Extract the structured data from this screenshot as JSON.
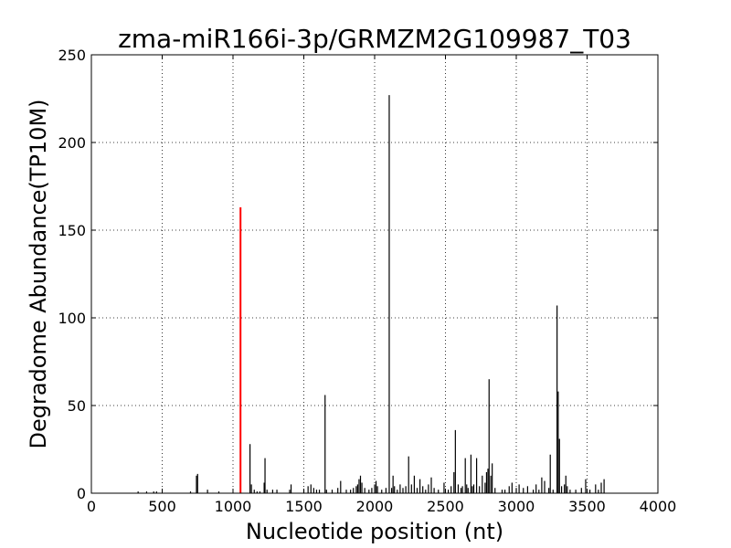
{
  "chart_data": {
    "type": "bar",
    "title": "zma-miR166i-3p/GRMZM2G109987_T03",
    "xlabel": "Nucleotide position (nt)",
    "ylabel": "Degradome Abundance(TP10M)",
    "xlim": [
      0,
      4000
    ],
    "ylim": [
      0,
      250
    ],
    "xticks": [
      "0",
      "500",
      "1000",
      "1500",
      "2000",
      "2500",
      "3000",
      "3500",
      "4000"
    ],
    "yticks": [
      "0",
      "50",
      "100",
      "150",
      "200",
      "250"
    ],
    "grid": true,
    "colors": {
      "target": "#ff0000",
      "background": "#000000"
    },
    "highlight": {
      "x": 1053,
      "y": 163
    },
    "points": [
      [
        330,
        1
      ],
      [
        390,
        1
      ],
      [
        440,
        1
      ],
      [
        460,
        1
      ],
      [
        700,
        1
      ],
      [
        742,
        10
      ],
      [
        750,
        11
      ],
      [
        820,
        2
      ],
      [
        900,
        1
      ],
      [
        1120,
        28
      ],
      [
        1130,
        5
      ],
      [
        1150,
        2
      ],
      [
        1170,
        1
      ],
      [
        1190,
        1
      ],
      [
        1220,
        6
      ],
      [
        1226,
        20
      ],
      [
        1240,
        2
      ],
      [
        1280,
        2
      ],
      [
        1310,
        2
      ],
      [
        1400,
        2
      ],
      [
        1410,
        5
      ],
      [
        1500,
        2
      ],
      [
        1530,
        4
      ],
      [
        1550,
        5
      ],
      [
        1570,
        3
      ],
      [
        1590,
        2
      ],
      [
        1610,
        2
      ],
      [
        1650,
        56
      ],
      [
        1660,
        2
      ],
      [
        1700,
        2
      ],
      [
        1740,
        3
      ],
      [
        1760,
        7
      ],
      [
        1800,
        2
      ],
      [
        1830,
        2
      ],
      [
        1850,
        3
      ],
      [
        1870,
        4
      ],
      [
        1880,
        5
      ],
      [
        1890,
        8
      ],
      [
        1900,
        10
      ],
      [
        1910,
        6
      ],
      [
        1930,
        3
      ],
      [
        1960,
        2
      ],
      [
        1980,
        3
      ],
      [
        2000,
        5
      ],
      [
        2010,
        7
      ],
      [
        2020,
        4
      ],
      [
        2050,
        2
      ],
      [
        2080,
        3
      ],
      [
        2103,
        227
      ],
      [
        2120,
        3
      ],
      [
        2130,
        10
      ],
      [
        2140,
        4
      ],
      [
        2160,
        2
      ],
      [
        2180,
        5
      ],
      [
        2200,
        3
      ],
      [
        2220,
        4
      ],
      [
        2240,
        21
      ],
      [
        2260,
        5
      ],
      [
        2280,
        10
      ],
      [
        2300,
        3
      ],
      [
        2320,
        8
      ],
      [
        2340,
        4
      ],
      [
        2360,
        2
      ],
      [
        2380,
        5
      ],
      [
        2400,
        9
      ],
      [
        2420,
        3
      ],
      [
        2450,
        2
      ],
      [
        2490,
        6
      ],
      [
        2520,
        2
      ],
      [
        2540,
        4
      ],
      [
        2560,
        12
      ],
      [
        2570,
        36
      ],
      [
        2590,
        5
      ],
      [
        2610,
        3
      ],
      [
        2620,
        4
      ],
      [
        2640,
        20
      ],
      [
        2650,
        5
      ],
      [
        2660,
        3
      ],
      [
        2680,
        22
      ],
      [
        2690,
        4
      ],
      [
        2700,
        5
      ],
      [
        2720,
        20
      ],
      [
        2740,
        4
      ],
      [
        2760,
        10
      ],
      [
        2780,
        6
      ],
      [
        2790,
        12
      ],
      [
        2800,
        14
      ],
      [
        2808,
        65
      ],
      [
        2820,
        10
      ],
      [
        2830,
        17
      ],
      [
        2850,
        3
      ],
      [
        2900,
        2
      ],
      [
        2920,
        2
      ],
      [
        2950,
        4
      ],
      [
        2970,
        6
      ],
      [
        3000,
        3
      ],
      [
        3020,
        5
      ],
      [
        3050,
        3
      ],
      [
        3080,
        4
      ],
      [
        3120,
        2
      ],
      [
        3140,
        5
      ],
      [
        3160,
        2
      ],
      [
        3180,
        9
      ],
      [
        3200,
        7
      ],
      [
        3230,
        3
      ],
      [
        3240,
        22
      ],
      [
        3260,
        2
      ],
      [
        3288,
        107
      ],
      [
        3296,
        58
      ],
      [
        3305,
        31
      ],
      [
        3320,
        4
      ],
      [
        3340,
        5
      ],
      [
        3350,
        10
      ],
      [
        3360,
        4
      ],
      [
        3380,
        2
      ],
      [
        3420,
        2
      ],
      [
        3460,
        3
      ],
      [
        3490,
        8
      ],
      [
        3520,
        2
      ],
      [
        3560,
        5
      ],
      [
        3580,
        2
      ],
      [
        3600,
        6
      ],
      [
        3620,
        8
      ]
    ]
  }
}
